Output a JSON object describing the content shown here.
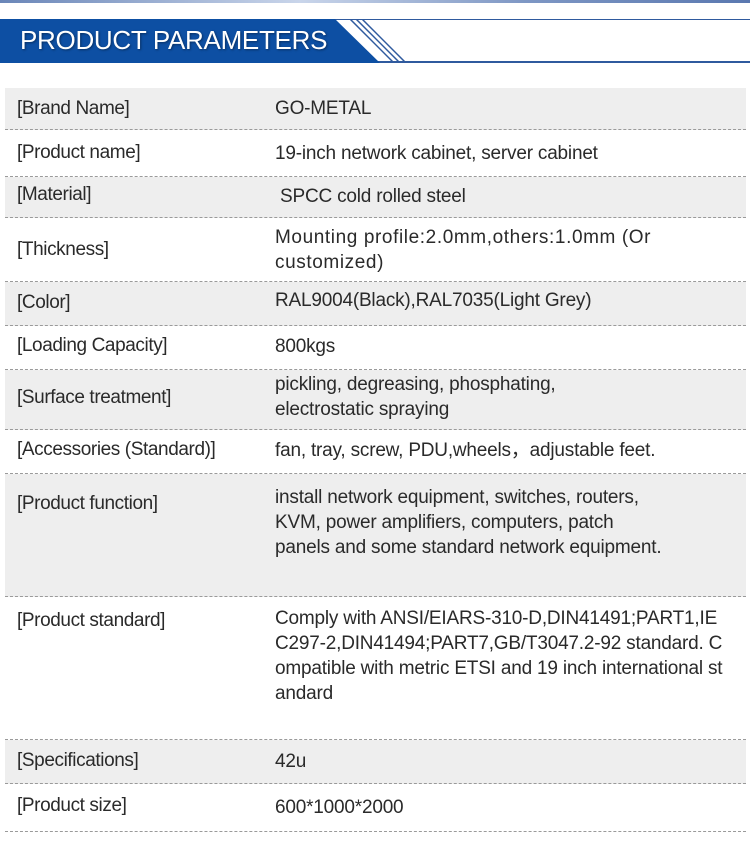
{
  "header": {
    "title": "PRODUCT PARAMETERS",
    "accent_color": "#0d4fa3"
  },
  "rows": [
    {
      "label": "[Brand Name]",
      "value": "GO-METAL"
    },
    {
      "label": "[Product name]",
      "value": "19-inch network cabinet, server cabinet"
    },
    {
      "label": "[Material]",
      "value": "SPCC cold rolled steel"
    },
    {
      "label": "[Thickness]",
      "value": "Mounting profile:2.0mm,others:1.0mm (Or customized)"
    },
    {
      "label": "[Color]",
      "value": "RAL9004(Black),RAL7035(Light Grey)"
    },
    {
      "label": "[Loading Capacity]",
      "value": "800kgs"
    },
    {
      "label": "[Surface treatment]",
      "value": "pickling, degreasing, phosphating, electrostatic spraying"
    },
    {
      "label": "[Accessories (Standard)]",
      "value": "fan, tray, screw, PDU,wheels，adjustable feet."
    },
    {
      "label": "[Product function]",
      "value": "install network equipment, switches, routers, KVM, power amplifiers, computers, patch panels and some standard network equipment."
    },
    {
      "label": "[Product standard]",
      "value": "Comply with ANSI/EIARS-310-D,DIN41491;PART1,IEC297-2,DIN41494;PART7,GB/T3047.2-92 standard. Compatible with metric ETSI and 19 inch international standard"
    },
    {
      "label": "[Specifications]",
      "value": "42u"
    },
    {
      "label": "[Product size]",
      "value": "600*1000*2000"
    }
  ]
}
